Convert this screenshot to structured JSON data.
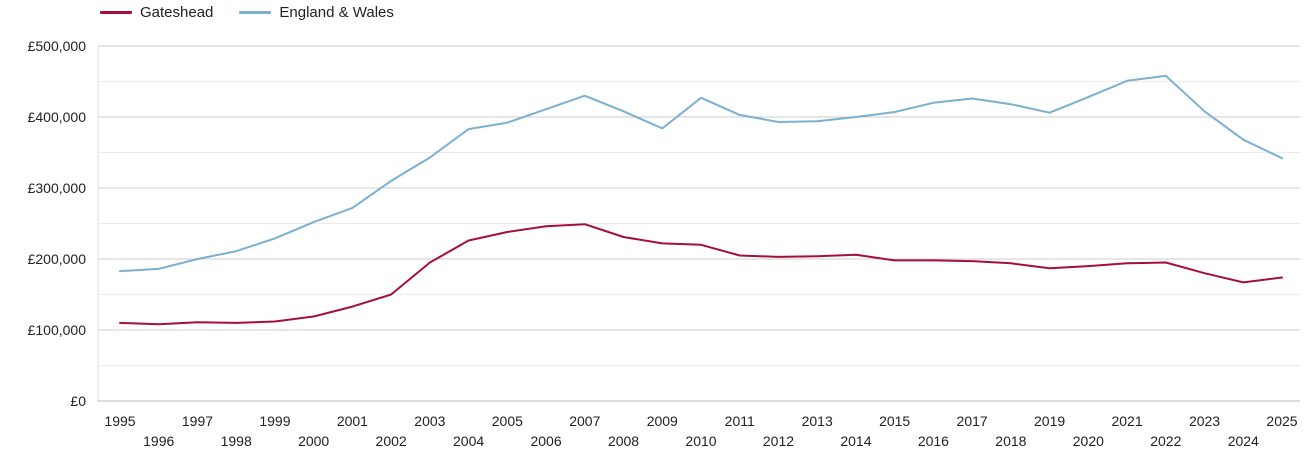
{
  "chart_data": {
    "type": "line",
    "title": "",
    "xlabel": "",
    "ylabel": "",
    "x": [
      1995,
      1996,
      1997,
      1998,
      1999,
      2000,
      2001,
      2002,
      2003,
      2004,
      2005,
      2006,
      2007,
      2008,
      2009,
      2010,
      2011,
      2012,
      2013,
      2014,
      2015,
      2016,
      2017,
      2018,
      2019,
      2020,
      2021,
      2022,
      2023,
      2024,
      2025
    ],
    "ylim": [
      0,
      500000
    ],
    "yticks": [
      0,
      100000,
      200000,
      300000,
      400000,
      500000
    ],
    "ytick_labels": [
      "£0",
      "£100,000",
      "£200,000",
      "£300,000",
      "£400,000",
      "£500,000"
    ],
    "grid": true,
    "legend_position": "top-left",
    "series": [
      {
        "name": "Gateshead",
        "color": "#a50f3a",
        "values": [
          110000,
          108000,
          111000,
          110000,
          112000,
          119000,
          133000,
          150000,
          195000,
          226000,
          238000,
          246000,
          249000,
          231000,
          222000,
          220000,
          205000,
          203000,
          204000,
          206000,
          198000,
          198000,
          197000,
          194000,
          187000,
          190000,
          194000,
          195000,
          180000,
          167000,
          174000
        ]
      },
      {
        "name": "England & Wales",
        "color": "#7ab0d0",
        "values": [
          183000,
          186000,
          200000,
          211000,
          229000,
          252000,
          272000,
          310000,
          343000,
          383000,
          392000,
          411000,
          430000,
          408000,
          384000,
          427000,
          403000,
          393000,
          394000,
          400000,
          407000,
          420000,
          426000,
          418000,
          406000,
          428000,
          451000,
          458000,
          408000,
          368000,
          342000
        ]
      }
    ]
  }
}
